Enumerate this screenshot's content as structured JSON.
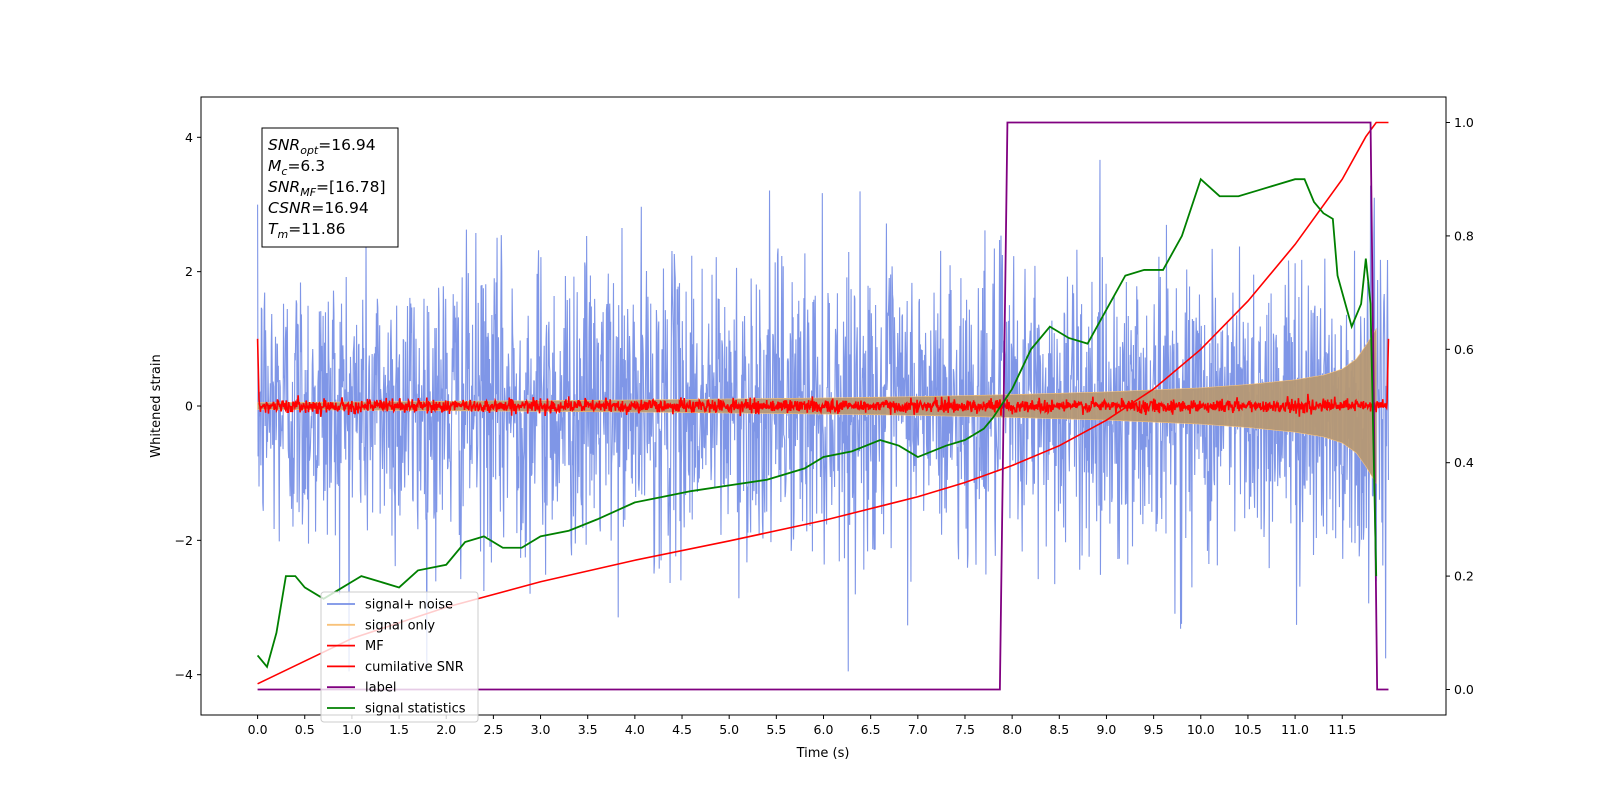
{
  "chart_data": {
    "type": "line",
    "title": "",
    "xlabel": "Time (s)",
    "ylabel": "Whitened strain",
    "xlim": [
      -0.6,
      12.6
    ],
    "ylim": [
      -4.6,
      4.6
    ],
    "y2lim": [
      -0.045,
      1.045
    ],
    "x_ticks": [
      "0.0",
      "0.5",
      "1.0",
      "1.5",
      "2.0",
      "2.5",
      "3.0",
      "3.5",
      "4.0",
      "4.5",
      "5.0",
      "5.5",
      "6.0",
      "6.5",
      "7.0",
      "7.5",
      "8.0",
      "8.5",
      "9.0",
      "9.5",
      "10.0",
      "10.5",
      "11.0",
      "11.5"
    ],
    "y_ticks": [
      "−4",
      "−2",
      "0",
      "2",
      "4"
    ],
    "y2_ticks": [
      "0.0",
      "0.2",
      "0.4",
      "0.6",
      "0.8",
      "1.0"
    ],
    "grid": false,
    "legend": "bottom-left",
    "annotation": {
      "snr_opt": {
        "sym": "SNR",
        "sub": "opt",
        "val": "=16.94"
      },
      "mc": {
        "sym": "M",
        "sub": "c",
        "val": "=6.3"
      },
      "snr_mf": {
        "sym": "SNR",
        "sub": "MF",
        "val": "=[16.78]"
      },
      "csnr": {
        "sym": "CSNR",
        "sub": "",
        "val": "=16.94"
      },
      "tm": {
        "sym": "T",
        "sub": "m",
        "val": "=11.86"
      }
    },
    "duration": 11.99,
    "series": [
      {
        "name": "signal+ noise",
        "color": "#7890e6",
        "axis": "left",
        "noise_std": 1.0
      },
      {
        "name": "signal only",
        "color": "#f8c27a",
        "axis": "left",
        "envelope": {
          "t": [
            0,
            2,
            4,
            6,
            7,
            8,
            9,
            10,
            10.5,
            11,
            11.3,
            11.5,
            11.65,
            11.75,
            11.86,
            11.99
          ],
          "a": [
            0.05,
            0.07,
            0.09,
            0.12,
            0.14,
            0.17,
            0.21,
            0.27,
            0.32,
            0.39,
            0.46,
            0.55,
            0.7,
            0.9,
            1.15,
            1.3
          ]
        }
      },
      {
        "name": "MF",
        "color": "#ff0000",
        "axis": "left",
        "noise_std": 0.05,
        "edge_value": 1.0
      },
      {
        "name": "cumilative SNR",
        "color": "#ff0000",
        "axis": "right",
        "x": [
          0,
          1,
          2,
          3,
          4,
          5,
          6,
          7,
          7.5,
          8,
          8.5,
          9,
          9.5,
          10,
          10.5,
          11,
          11.5,
          11.75,
          11.86,
          11.99
        ],
        "y": [
          0.01,
          0.09,
          0.145,
          0.19,
          0.228,
          0.262,
          0.298,
          0.34,
          0.365,
          0.395,
          0.43,
          0.475,
          0.53,
          0.6,
          0.685,
          0.785,
          0.9,
          0.975,
          1.0,
          1.0
        ]
      },
      {
        "name": "label",
        "color": "#800080",
        "axis": "right",
        "x": [
          0,
          7.87,
          7.95,
          11.8,
          11.87,
          11.99
        ],
        "y": [
          0,
          0,
          1,
          1,
          0,
          0
        ]
      },
      {
        "name": "signal statistics",
        "color": "#008000",
        "axis": "right",
        "x": [
          0,
          0.1,
          0.2,
          0.3,
          0.4,
          0.5,
          0.7,
          0.9,
          1.0,
          1.1,
          1.3,
          1.5,
          1.7,
          2.0,
          2.2,
          2.4,
          2.6,
          2.8,
          3.0,
          3.3,
          3.6,
          4.0,
          4.3,
          4.6,
          5.0,
          5.4,
          5.8,
          6.0,
          6.3,
          6.6,
          6.8,
          7.0,
          7.3,
          7.5,
          7.7,
          7.8,
          8.0,
          8.2,
          8.4,
          8.6,
          8.8,
          9.0,
          9.2,
          9.4,
          9.6,
          9.8,
          10.0,
          10.2,
          10.4,
          10.6,
          10.8,
          11.0,
          11.1,
          11.2,
          11.3,
          11.4,
          11.45,
          11.5,
          11.55,
          11.6,
          11.7,
          11.75,
          11.8,
          11.86
        ],
        "y": [
          0.06,
          0.04,
          0.1,
          0.2,
          0.2,
          0.18,
          0.16,
          0.18,
          0.19,
          0.2,
          0.19,
          0.18,
          0.21,
          0.22,
          0.26,
          0.27,
          0.25,
          0.25,
          0.27,
          0.28,
          0.3,
          0.33,
          0.34,
          0.35,
          0.36,
          0.37,
          0.39,
          0.41,
          0.42,
          0.44,
          0.43,
          0.41,
          0.43,
          0.44,
          0.46,
          0.48,
          0.53,
          0.6,
          0.64,
          0.62,
          0.61,
          0.67,
          0.73,
          0.74,
          0.74,
          0.8,
          0.9,
          0.87,
          0.87,
          0.88,
          0.89,
          0.9,
          0.9,
          0.86,
          0.84,
          0.83,
          0.73,
          0.7,
          0.67,
          0.64,
          0.68,
          0.76,
          0.68,
          0.2
        ]
      }
    ]
  }
}
